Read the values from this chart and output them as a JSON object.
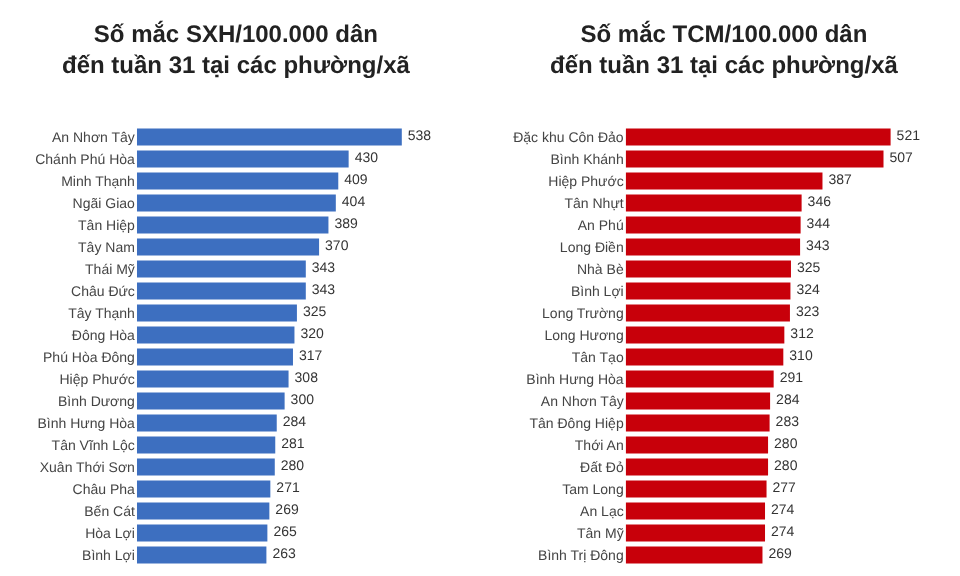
{
  "chart_data": [
    {
      "type": "bar",
      "orientation": "horizontal",
      "title": "Số mắc SXH/100.000 dân\nđến tuần 31 tại các phường/xã",
      "categories": [
        "An Nhơn Tây",
        "Chánh Phú Hòa",
        "Minh Thạnh",
        "Ngãi Giao",
        "Tân Hiệp",
        "Tây Nam",
        "Thái Mỹ",
        "Châu Đức",
        "Tây Thạnh",
        "Đông Hòa",
        "Phú Hòa Đông",
        "Hiệp Phước",
        "Bình Dương",
        "Bình Hưng Hòa",
        "Tân Vĩnh Lộc",
        "Xuân Thới Sơn",
        "Châu Pha",
        "Bến Cát",
        "Hòa Lợi",
        "Bình Lợi"
      ],
      "values": [
        538,
        430,
        409,
        404,
        389,
        370,
        343,
        343,
        325,
        320,
        317,
        308,
        300,
        284,
        281,
        280,
        271,
        269,
        265,
        263
      ],
      "color": "#3d6fc0",
      "data_labels": true,
      "tick_labels": "y"
    },
    {
      "type": "bar",
      "orientation": "horizontal",
      "title": "Số mắc TCM/100.000 dân\nđến tuần 31 tại các phường/xã",
      "categories": [
        "Đặc khu Côn Đảo",
        "Bình Khánh",
        "Hiệp Phước",
        "Tân Nhựt",
        "An Phú",
        "Long Điền",
        "Nhà Bè",
        "Bình Lợi",
        "Long Trường",
        "Long Hương",
        "Tân Tạo",
        "Bình Hưng Hòa",
        "An Nhơn Tây",
        "Tân Đông Hiệp",
        "Thới An",
        "Đất Đỏ",
        "Tam Long",
        "An Lạc",
        "Tân Mỹ",
        "Bình Trị Đông"
      ],
      "values": [
        521,
        507,
        387,
        346,
        344,
        343,
        325,
        324,
        323,
        312,
        310,
        291,
        284,
        283,
        280,
        280,
        277,
        274,
        274,
        269
      ],
      "color": "#c8000a",
      "data_labels": true,
      "tick_labels": "y"
    }
  ]
}
